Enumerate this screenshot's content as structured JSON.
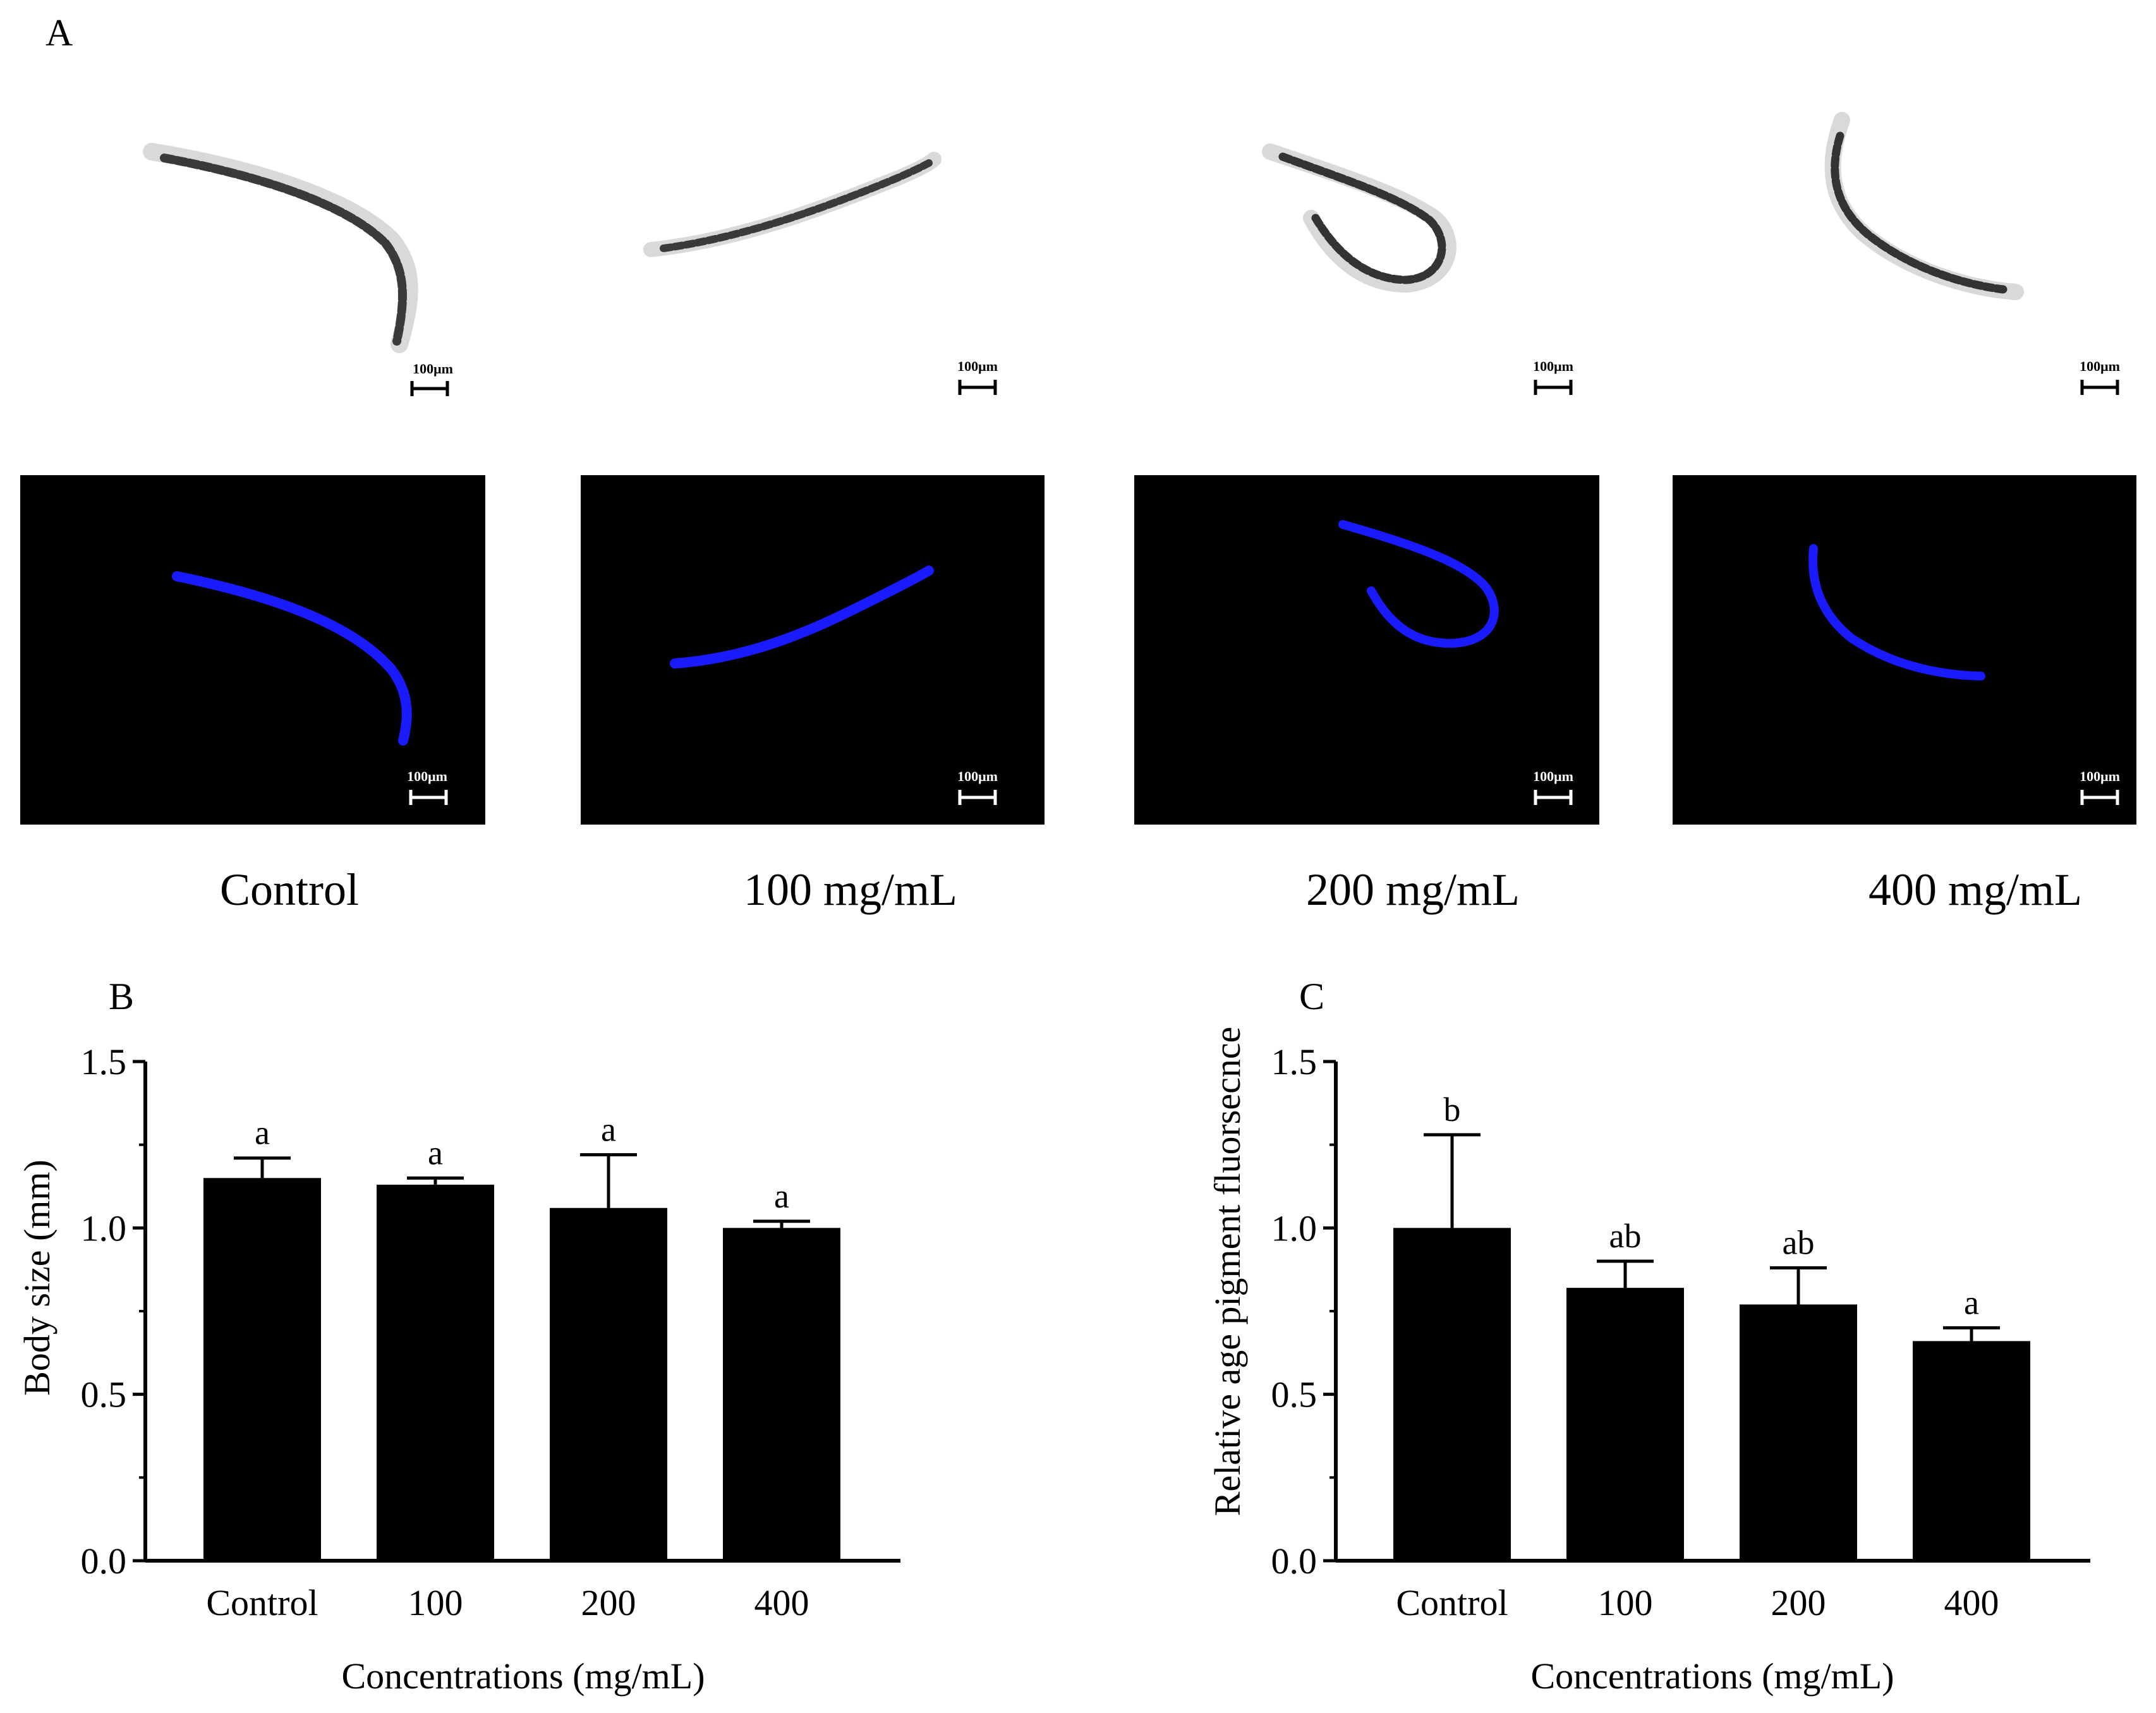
{
  "panel_a": {
    "letter": "A",
    "scale_bar_label": "100μm",
    "conditions": [
      "Control",
      "100 mg/mL",
      "200 mg/mL",
      "400 mg/mL"
    ],
    "colors": {
      "fluorescence_bg": "#000000",
      "fluorescence_worm": "#1a1aff",
      "brightfield_worm": "#2a2a2a"
    }
  },
  "chart_data": [
    {
      "panel": "B",
      "type": "bar",
      "categories": [
        "Control",
        "100",
        "200",
        "400"
      ],
      "values": [
        1.15,
        1.13,
        1.06,
        1.0
      ],
      "errors": [
        0.06,
        0.02,
        0.16,
        0.02
      ],
      "significance": [
        "a",
        "a",
        "a",
        "a"
      ],
      "xlabel": "Concentrations (mg/mL)",
      "ylabel": "Body size (mm)",
      "ylim": [
        0,
        1.5
      ],
      "yticks": [
        "0.0",
        "0.5",
        "1.0",
        "1.5"
      ],
      "bar_color": "#000000"
    },
    {
      "panel": "C",
      "type": "bar",
      "categories": [
        "Control",
        "100",
        "200",
        "400"
      ],
      "values": [
        1.0,
        0.82,
        0.77,
        0.66
      ],
      "errors": [
        0.28,
        0.08,
        0.11,
        0.04
      ],
      "significance": [
        "b",
        "ab",
        "ab",
        "a"
      ],
      "xlabel": "Concentrations (mg/mL)",
      "ylabel": "Relative age pigment fluorsecnce",
      "ylim": [
        0,
        1.5
      ],
      "yticks": [
        "0.0",
        "0.5",
        "1.0",
        "1.5"
      ],
      "bar_color": "#000000"
    }
  ]
}
